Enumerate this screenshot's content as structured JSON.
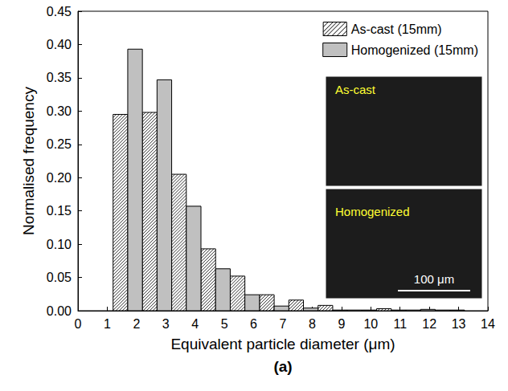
{
  "chart_data": {
    "type": "histogram",
    "x_label": "Equivalent particle diameter (μm)",
    "y_label": "Normalised frequency",
    "caption": "(a)",
    "bins": [
      1.2,
      2.2,
      3.2,
      4.2,
      5.2,
      6.2,
      7.2,
      8.2,
      9.2,
      10.2,
      11.2,
      12.2,
      13.2
    ],
    "series": [
      {
        "name": "As-cast (15mm)",
        "color": "#ffffff",
        "values": [
          0.295,
          0.298,
          0.205,
          0.093,
          0.052,
          0.024,
          0.016,
          0.008,
          0.001,
          0.003,
          0.001,
          0.001
        ]
      },
      {
        "name": "Homogenized (15mm)",
        "color": "#c0c0c0",
        "values": [
          0.393,
          0.347,
          0.157,
          0.063,
          0.024,
          0.007,
          0.004,
          0.001,
          0.001,
          0.001,
          0.002,
          0.001
        ]
      }
    ],
    "xlim": [
      0,
      14
    ],
    "xticks": [
      0,
      1,
      2,
      3,
      4,
      5,
      6,
      7,
      8,
      9,
      10,
      11,
      12,
      13,
      14
    ],
    "ylim": [
      0,
      0.45
    ],
    "yticks": [
      {
        "value": 0,
        "label": "0.00"
      },
      {
        "value": 0.05,
        "label": "0.05"
      },
      {
        "value": 0.1,
        "label": "0.10"
      },
      {
        "value": 0.15,
        "label": "0.15"
      },
      {
        "value": 0.2,
        "label": "0.20"
      },
      {
        "value": 0.25,
        "label": "0.25"
      },
      {
        "value": 0.3,
        "label": "0.30"
      },
      {
        "value": 0.35,
        "label": "0.35"
      },
      {
        "value": 0.4,
        "label": "0.40"
      },
      {
        "value": 0.45,
        "label": "0.45"
      }
    ],
    "legend": "upper right",
    "insets": [
      "As-cast",
      "Homogenized"
    ],
    "scale_bar": "100 μm"
  }
}
